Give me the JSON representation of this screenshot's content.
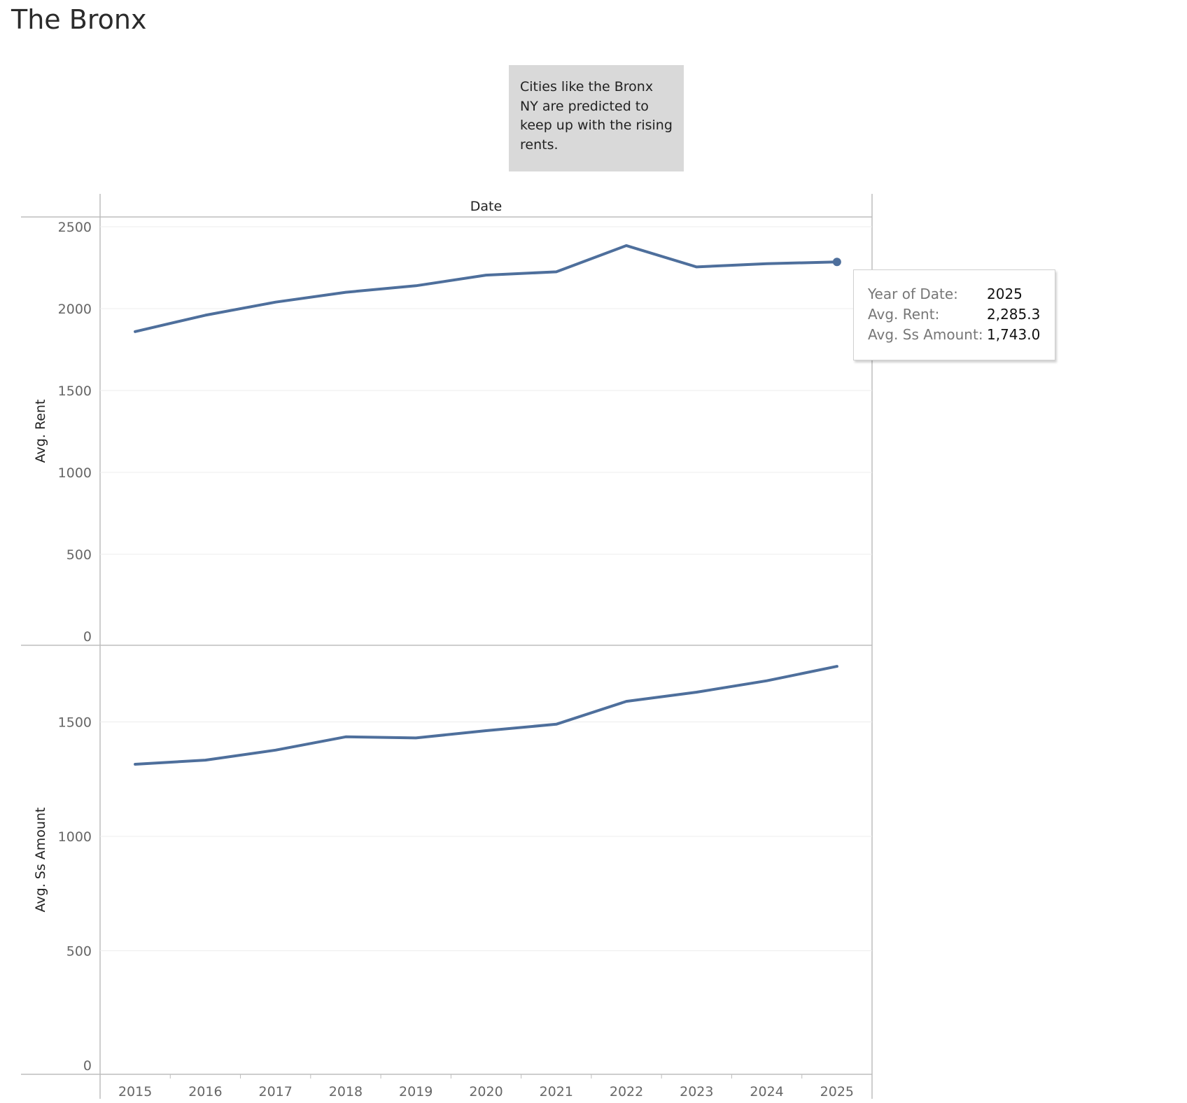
{
  "title": "The Bronx",
  "annotation": "Cities like the Bronx NY are predicted to keep up with the rising rents.",
  "tooltip": {
    "rows": [
      {
        "label": "Year of Date:",
        "value": "2025"
      },
      {
        "label": "Avg. Rent:",
        "value": "2,285.3"
      },
      {
        "label": "Avg. Ss Amount:",
        "value": "1,743.0"
      }
    ]
  },
  "colors": {
    "line": "#4e6f9c",
    "grid": "#ececec",
    "axis": "#bdbdbd"
  },
  "chart_data": [
    {
      "type": "line",
      "header": "Date",
      "ylabel": "Avg. Rent",
      "x": [
        "2015",
        "2016",
        "2017",
        "2018",
        "2019",
        "2020",
        "2021",
        "2022",
        "2023",
        "2024",
        "2025"
      ],
      "values": [
        1860,
        1960,
        2040,
        2100,
        2140,
        2205,
        2225,
        2385,
        2255,
        2275,
        2285.3
      ],
      "yticks": [
        0,
        500,
        1000,
        1500,
        2000,
        2500
      ],
      "ylim": [
        0,
        2560
      ],
      "highlight_last": true
    },
    {
      "type": "line",
      "ylabel": "Avg. Ss Amount",
      "x": [
        "2015",
        "2016",
        "2017",
        "2018",
        "2019",
        "2020",
        "2021",
        "2022",
        "2023",
        "2024",
        "2025"
      ],
      "values": [
        1315,
        1333,
        1377,
        1435,
        1430,
        1462,
        1490,
        1590,
        1630,
        1680,
        1743
      ],
      "yticks": [
        0,
        500,
        1000,
        1500
      ],
      "ylim": [
        0,
        1835
      ]
    }
  ]
}
